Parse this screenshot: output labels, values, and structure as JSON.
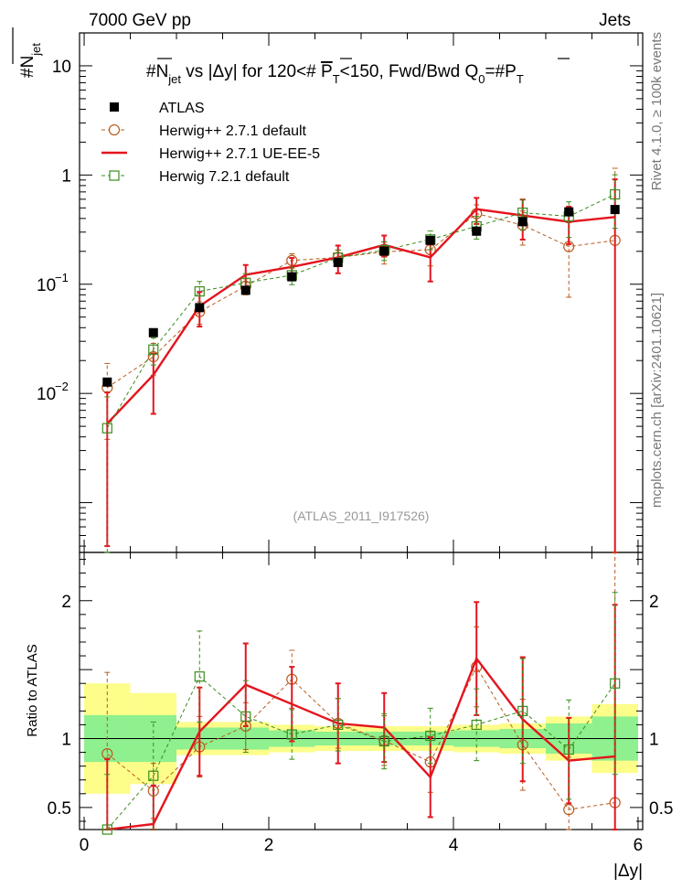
{
  "header": {
    "left": "7000 GeV pp",
    "right": "Jets"
  },
  "side": {
    "rivet": "Rivet 4.1.0, ≥ 100k events",
    "mcplots": "mcplots.cern.ch [arXiv:2401.10621]"
  },
  "chart_data": {
    "type": "line",
    "title": "#N_jet vs |Δy| for 120<# P_T<150, Fwd/Bwd Q_0=#P_T",
    "title_parts": {
      "a": "#N",
      "jet": "jet",
      "b": " vs |Δy| for 120<# ",
      "P": "P",
      "T": "T",
      "c": "<150, Fwd/Bwd Q",
      "zero": "0",
      "d": "=#",
      "P2": "P",
      "T2": "T"
    },
    "watermark": "(ATLAS_2011_I917526)",
    "xlabel": "|Δy|",
    "ylabel_top": "#N",
    "ylabel_top_sub": "jet",
    "ylabel_bottom": "Ratio to ATLAS",
    "xlim": [
      -0.05,
      6.05
    ],
    "ylim_top": [
      0.00035,
      20
    ],
    "ylim_ratio": [
      0.34,
      2.35
    ],
    "x_ticks": [
      0,
      2,
      4,
      6
    ],
    "x_tick_labels": [
      "0",
      "2",
      "4",
      "6"
    ],
    "y_ticks_top": [
      0.01,
      0.1,
      1,
      10
    ],
    "y_tick_labels_top": {
      "base": "10",
      "exps": [
        "−2",
        "−1",
        "",
        ""
      ],
      "plain": [
        "",
        "",
        "1",
        "10"
      ]
    },
    "y_ticks_ratio": [
      0.5,
      1,
      2
    ],
    "y_tick_labels_ratio": [
      "0.5",
      "1",
      "2"
    ],
    "x": [
      0.25,
      0.75,
      1.25,
      1.75,
      2.25,
      2.75,
      3.25,
      3.75,
      4.25,
      4.75,
      5.25,
      5.75
    ],
    "bin_edges": [
      0,
      0.5,
      1,
      1.5,
      2,
      2.5,
      3,
      3.5,
      4,
      4.5,
      5,
      5.5,
      6
    ],
    "legend": [
      "ATLAS",
      "Herwig++ 2.7.1 default",
      "Herwig++ 2.7.1 UE-EE-5",
      "Herwig 7.2.1 default"
    ],
    "series": [
      {
        "name": "ATLAS",
        "color": "#000000",
        "values": [
          0.0127,
          0.036,
          0.061,
          0.088,
          0.117,
          0.158,
          0.201,
          0.252,
          0.306,
          0.374,
          0.46,
          0.483
        ],
        "band_inner": [
          0.17,
          0.17,
          0.08,
          0.08,
          0.06,
          0.05,
          0.05,
          0.05,
          0.06,
          0.07,
          0.11,
          0.16
        ],
        "band_outer": [
          0.4,
          0.33,
          0.12,
          0.12,
          0.1,
          0.09,
          0.09,
          0.09,
          0.1,
          0.11,
          0.16,
          0.25
        ]
      },
      {
        "name": "Herwig++ 2.7.1 default",
        "color": "#b85c1e",
        "values": [
          0.0113,
          0.0217,
          0.056,
          0.096,
          0.165,
          0.176,
          0.198,
          0.207,
          0.443,
          0.348,
          0.221,
          0.252
        ],
        "errors": [
          0.0075,
          0.007,
          0.013,
          0.016,
          0.025,
          0.03,
          0.045,
          0.06,
          0.09,
          0.12,
          0.145,
          0.9
        ]
      },
      {
        "name": "Herwig++ 2.7.1 UE-EE-5",
        "color": "#e4141e",
        "values": [
          0.0053,
          0.0148,
          0.063,
          0.122,
          0.144,
          0.176,
          0.229,
          0.176,
          0.487,
          0.426,
          0.373,
          0.412
        ],
        "errors": [
          0.0049,
          0.0083,
          0.022,
          0.028,
          0.03,
          0.05,
          0.05,
          0.07,
          0.13,
          0.17,
          0.14,
          0.5
        ]
      },
      {
        "name": "Herwig 7.2.1 default",
        "color": "#3a8c1e",
        "values": [
          0.0048,
          0.0252,
          0.086,
          0.103,
          0.121,
          0.175,
          0.205,
          0.257,
          0.339,
          0.452,
          0.418,
          0.665
        ],
        "errors": [
          0.0045,
          0.007,
          0.02,
          0.022,
          0.022,
          0.03,
          0.04,
          0.05,
          0.08,
          0.14,
          0.15,
          0.34
        ]
      }
    ],
    "ratio_series": [
      {
        "name": "Herwig++ 2.7.1 default",
        "values": [
          0.89,
          0.62,
          0.94,
          1.09,
          1.43,
          1.11,
          0.985,
          0.83,
          1.52,
          0.955,
          0.485,
          0.535
        ],
        "errors": [
          0.59,
          0.2,
          0.22,
          0.17,
          0.21,
          0.18,
          0.18,
          0.22,
          0.29,
          0.33,
          0.38,
          1.86
        ]
      },
      {
        "name": "Herwig++ 2.7.1 UE-EE-5",
        "values": [
          0.33,
          0.38,
          1.05,
          1.39,
          1.25,
          1.11,
          1.08,
          0.72,
          1.58,
          1.14,
          0.84,
          0.87
        ],
        "errors": [
          0.52,
          0.28,
          0.32,
          0.3,
          0.27,
          0.29,
          0.25,
          0.29,
          0.41,
          0.45,
          0.31,
          1.1
        ]
      },
      {
        "name": "Herwig 7.2.1 default",
        "values": [
          0.34,
          0.73,
          1.45,
          1.16,
          1.03,
          1.1,
          0.98,
          1.02,
          1.1,
          1.2,
          0.92,
          1.4
        ],
        "errors": [
          0.4,
          0.39,
          0.33,
          0.26,
          0.18,
          0.19,
          0.2,
          0.2,
          0.26,
          0.38,
          0.36,
          0.66
        ]
      }
    ]
  }
}
